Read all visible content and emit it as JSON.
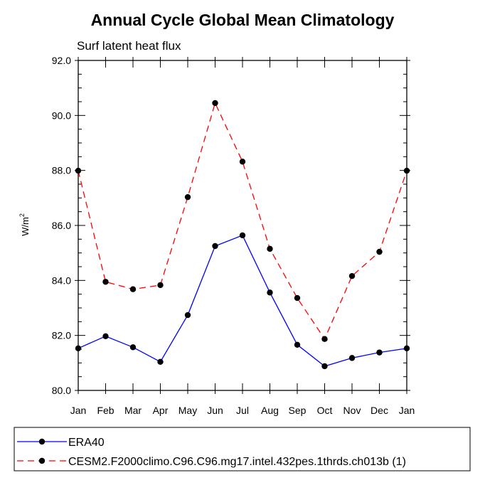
{
  "chart_data": {
    "type": "line",
    "title": "Annual Cycle Global Mean Climatology",
    "subtitle": "Surf latent heat flux",
    "xlabel": "",
    "ylabel": "W/m",
    "ylabel_superscript": "2",
    "categories": [
      "Jan",
      "Feb",
      "Mar",
      "Apr",
      "May",
      "Jun",
      "Jul",
      "Aug",
      "Sep",
      "Oct",
      "Nov",
      "Dec",
      "Jan"
    ],
    "ylim": [
      80.0,
      92.0
    ],
    "yticks": [
      "80.0",
      "82.0",
      "84.0",
      "86.0",
      "88.0",
      "90.0",
      "92.0"
    ],
    "series": [
      {
        "name": "ERA40",
        "color": "#0000ff",
        "line_style": "solid",
        "marker": "filled-circle",
        "values": [
          81.53,
          81.97,
          81.57,
          81.04,
          82.74,
          85.25,
          85.64,
          83.56,
          81.66,
          80.88,
          81.18,
          81.38,
          81.53
        ]
      },
      {
        "name": "CESM2.F2000climo.C96.C96.mg17.intel.432pes.1thrds.ch013b (1)",
        "color": "#ff0000",
        "line_style": "dashed",
        "marker": "filled-circle",
        "values": [
          87.99,
          83.95,
          83.68,
          83.83,
          87.03,
          90.45,
          88.32,
          85.15,
          83.36,
          81.87,
          84.16,
          85.04,
          87.99
        ]
      }
    ],
    "legend_placement": "bottom"
  }
}
